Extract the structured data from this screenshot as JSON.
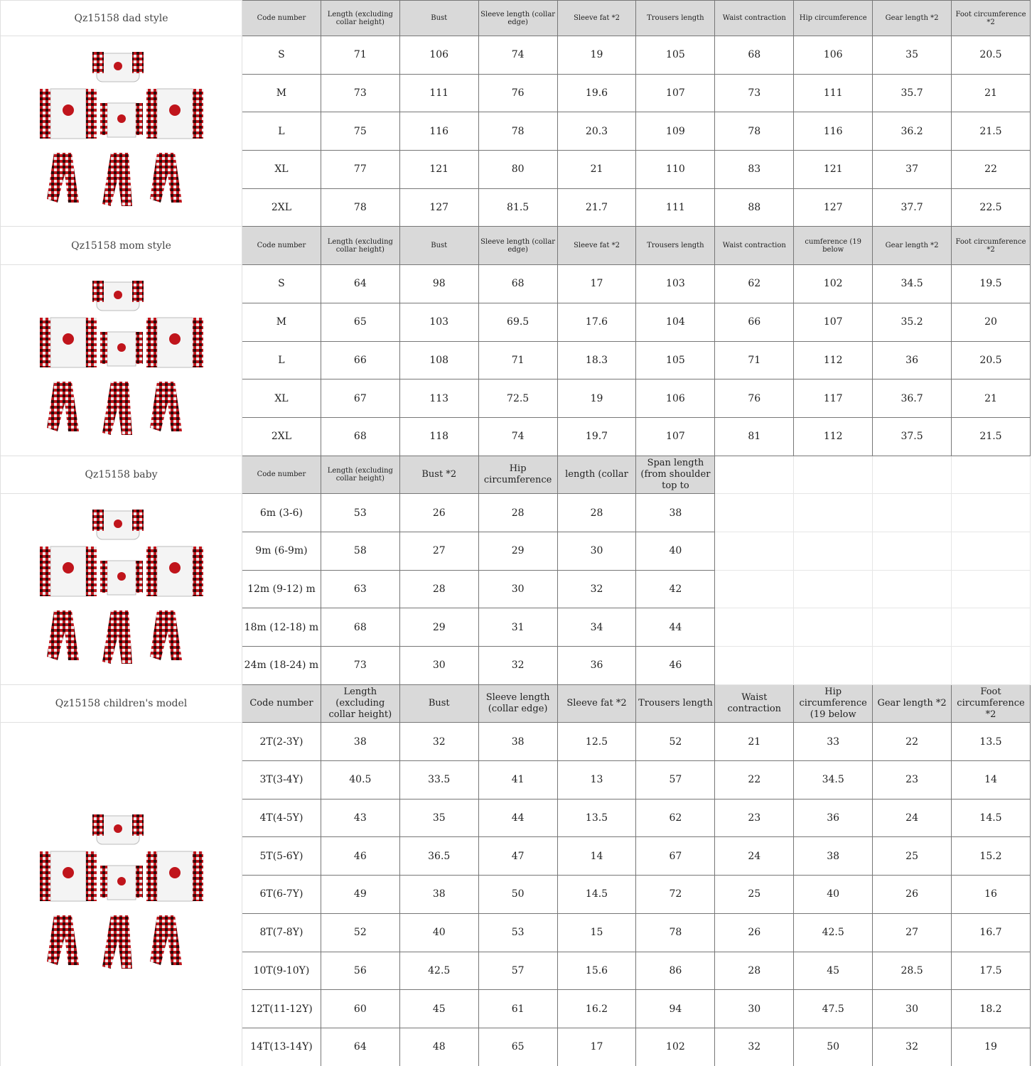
{
  "sections": [
    {
      "title": "Qz15158 dad style",
      "header_style": "small",
      "headers": [
        "Code number",
        "Length (excluding collar height)",
        "Bust",
        "Sleeve length (collar edge)",
        "Sleeve fat *2",
        "Trousers length",
        "Waist contraction",
        "Hip circumference",
        "Gear length *2",
        "Foot circumference *2"
      ],
      "rows": [
        [
          "S",
          "71",
          "106",
          "74",
          "19",
          "105",
          "68",
          "106",
          "35",
          "20.5"
        ],
        [
          "M",
          "73",
          "111",
          "76",
          "19.6",
          "107",
          "73",
          "111",
          "35.7",
          "21"
        ],
        [
          "L",
          "75",
          "116",
          "78",
          "20.3",
          "109",
          "78",
          "116",
          "36.2",
          "21.5"
        ],
        [
          "XL",
          "77",
          "121",
          "80",
          "21",
          "110",
          "83",
          "121",
          "37",
          "22"
        ],
        [
          "2XL",
          "78",
          "127",
          "81.5",
          "21.7",
          "111",
          "88",
          "127",
          "37.7",
          "22.5"
        ]
      ]
    },
    {
      "title": "Qz15158 mom style",
      "header_style": "small",
      "headers": [
        "Code number",
        "Length (excluding collar height)",
        "Bust",
        "Sleeve length (collar edge)",
        "Sleeve fat *2",
        "Trousers length",
        "Waist contraction",
        "cumference (19 below",
        "Gear length *2",
        "Foot circumference *2"
      ],
      "rows": [
        [
          "S",
          "64",
          "98",
          "68",
          "17",
          "103",
          "62",
          "102",
          "34.5",
          "19.5"
        ],
        [
          "M",
          "65",
          "103",
          "69.5",
          "17.6",
          "104",
          "66",
          "107",
          "35.2",
          "20"
        ],
        [
          "L",
          "66",
          "108",
          "71",
          "18.3",
          "105",
          "71",
          "112",
          "36",
          "20.5"
        ],
        [
          "XL",
          "67",
          "113",
          "72.5",
          "19",
          "106",
          "76",
          "117",
          "36.7",
          "21"
        ],
        [
          "2XL",
          "68",
          "118",
          "74",
          "19.7",
          "107",
          "81",
          "112",
          "37.5",
          "21.5"
        ]
      ]
    },
    {
      "title": "Qz15158 baby",
      "header_style": "mixed",
      "headers": [
        "Code number",
        "Length (excluding collar height)",
        "Bust *2",
        "Hip circumference",
        "length (collar",
        "Span length (from shoulder top to"
      ],
      "rows": [
        [
          "6m (3-6)",
          "53",
          "26",
          "28",
          "28",
          "38"
        ],
        [
          "9m (6-9m)",
          "58",
          "27",
          "29",
          "30",
          "40"
        ],
        [
          "12m (9-12) m",
          "63",
          "28",
          "30",
          "32",
          "42"
        ],
        [
          "18m (12-18) m",
          "68",
          "29",
          "31",
          "34",
          "44"
        ],
        [
          "24m (18-24) m",
          "73",
          "30",
          "32",
          "36",
          "46"
        ]
      ]
    },
    {
      "title": "Qz15158 children's model",
      "header_style": "big",
      "headers": [
        "Code number",
        "Length (excluding collar height)",
        "Bust",
        "Sleeve length (collar edge)",
        "Sleeve fat *2",
        "Trousers length",
        "Waist contraction",
        "Hip circumference (19 below",
        "Gear length *2",
        "Foot circumference *2"
      ],
      "rows": [
        [
          "2T(2-3Y)",
          "38",
          "32",
          "38",
          "12.5",
          "52",
          "21",
          "33",
          "22",
          "13.5"
        ],
        [
          "3T(3-4Y)",
          "40.5",
          "33.5",
          "41",
          "13",
          "57",
          "22",
          "34.5",
          "23",
          "14"
        ],
        [
          "4T(4-5Y)",
          "43",
          "35",
          "44",
          "13.5",
          "62",
          "23",
          "36",
          "24",
          "14.5"
        ],
        [
          "5T(5-6Y)",
          "46",
          "36.5",
          "47",
          "14",
          "67",
          "24",
          "38",
          "25",
          "15.2"
        ],
        [
          "6T(6-7Y)",
          "49",
          "38",
          "50",
          "14.5",
          "72",
          "25",
          "40",
          "26",
          "16"
        ],
        [
          "8T(7-8Y)",
          "52",
          "40",
          "53",
          "15",
          "78",
          "26",
          "42.5",
          "27",
          "16.7"
        ],
        [
          "10T(9-10Y)",
          "56",
          "42.5",
          "57",
          "15.6",
          "86",
          "28",
          "45",
          "28.5",
          "17.5"
        ],
        [
          "12T(11-12Y)",
          "60",
          "45",
          "61",
          "16.2",
          "94",
          "30",
          "47.5",
          "30",
          "18.2"
        ],
        [
          "14T(13-14Y)",
          "64",
          "48",
          "65",
          "17",
          "102",
          "32",
          "50",
          "32",
          "19"
        ]
      ]
    }
  ],
  "colors": {
    "header_bg": "#d9d9d9",
    "plaid_red": "#c0151c",
    "plaid_dark": "#2a0a0a"
  },
  "image_icon": "family-pajama-set-photo"
}
